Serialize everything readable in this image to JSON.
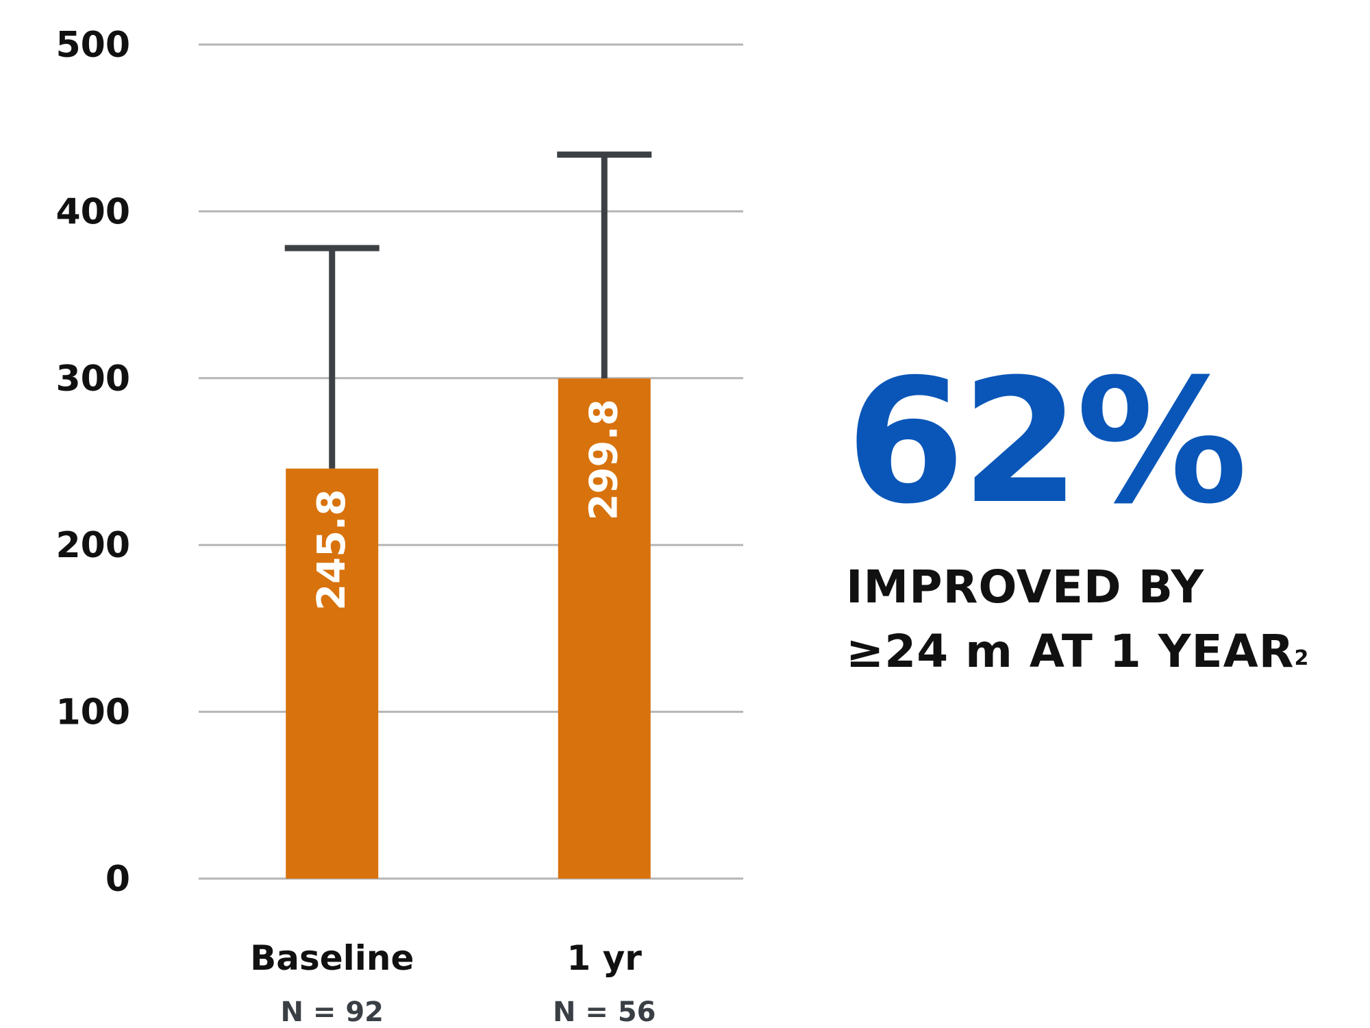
{
  "chart_data": {
    "type": "bar",
    "categories": [
      "Baseline",
      "1 yr"
    ],
    "sample_sizes": [
      "N = 92",
      "N = 56"
    ],
    "values": [
      245.8,
      299.8
    ],
    "value_labels": [
      "245.8",
      "299.8"
    ],
    "error_upper": [
      378,
      434
    ],
    "ylim": [
      0,
      500
    ],
    "yticks": [
      0,
      100,
      200,
      300,
      400,
      500
    ],
    "grid": true,
    "bar_color": "#d8720c",
    "error_bar_color": "#3d4146",
    "grid_color": "#b5b5b5"
  },
  "callout": {
    "percent": "62%",
    "line1": "IMPROVED BY",
    "line2": "≥24 m AT 1 YEAR",
    "footnote": "2",
    "percent_color": "#0a56b8"
  }
}
